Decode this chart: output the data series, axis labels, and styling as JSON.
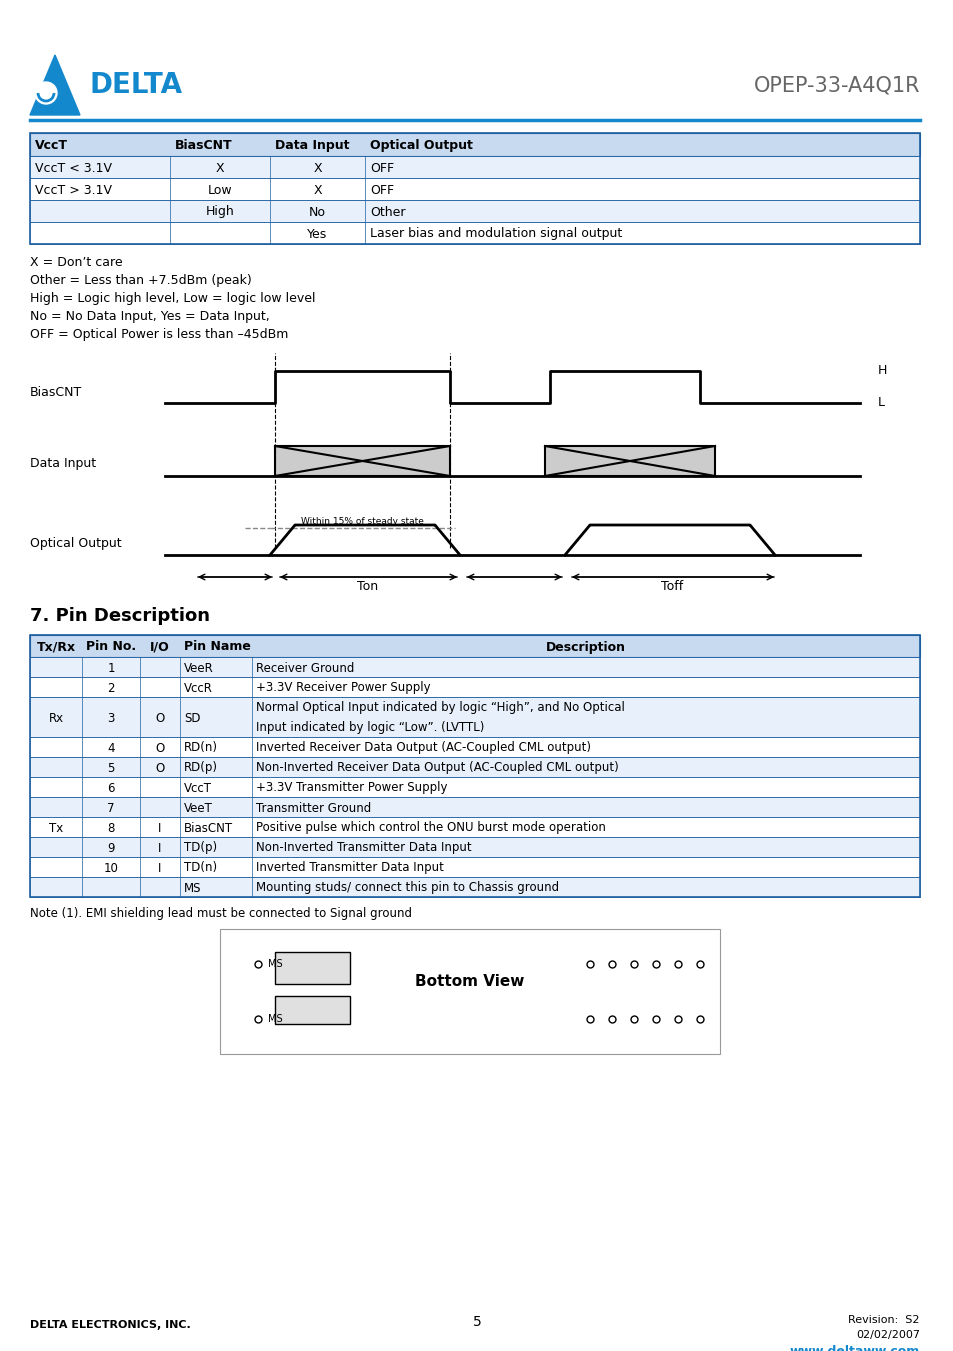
{
  "title": "OPEP-33-A4Q1R",
  "bg_color": "#ffffff",
  "blue_color": "#1488cc",
  "dark_blue": "#1e5fa0",
  "header_bg": "#c8daf0",
  "table1_headers": [
    "VccT",
    "BiasCNT",
    "Data Input",
    "Optical Output"
  ],
  "table1_rows": [
    [
      "VccT < 3.1V",
      "X",
      "X",
      "OFF"
    ],
    [
      "VccT > 3.1V",
      "Low",
      "X",
      "OFF"
    ],
    [
      "",
      "High",
      "No",
      "Other"
    ],
    [
      "",
      "",
      "Yes",
      "Laser bias and modulation signal output"
    ]
  ],
  "notes": [
    "X = Don’t care",
    "Other = Less than +7.5dBm (peak)",
    "High = Logic high level, Low = logic low level",
    "No = No Data Input, Yes = Data Input,",
    "OFF = Optical Power is less than –45dBm"
  ],
  "section7_title": "7. Pin Description",
  "table2_headers": [
    "Tx/Rx",
    "Pin No.",
    "I/O",
    "Pin Name",
    "Description"
  ],
  "table2_rows": [
    [
      "",
      "1",
      "",
      "VeeR",
      "Receiver Ground"
    ],
    [
      "",
      "2",
      "",
      "VccR",
      "+3.3V Receiver Power Supply"
    ],
    [
      "Rx",
      "3",
      "O",
      "SD",
      "Normal Optical Input indicated by logic “High”, and No Optical\nInput indicated by logic “Low”. (LVTTL)"
    ],
    [
      "",
      "4",
      "O",
      "RD(n)",
      "Inverted Receiver Data Output (AC-Coupled CML output)"
    ],
    [
      "",
      "5",
      "O",
      "RD(p)",
      "Non-Inverted Receiver Data Output (AC-Coupled CML output)"
    ],
    [
      "",
      "6",
      "",
      "VccT",
      "+3.3V Transmitter Power Supply"
    ],
    [
      "",
      "7",
      "",
      "VeeT",
      "Transmitter Ground"
    ],
    [
      "Tx",
      "8",
      "I",
      "BiasCNT",
      "Positive pulse which control the ONU burst mode operation"
    ],
    [
      "",
      "9",
      "I",
      "TD(p)",
      "Non-Inverted Transmitter Data Input"
    ],
    [
      "",
      "10",
      "I",
      "TD(n)",
      "Inverted Transmitter Data Input"
    ],
    [
      "",
      "",
      "",
      "MS",
      "Mounting studs/ connect this pin to Chassis ground"
    ]
  ],
  "note2": "Note (1). EMI shielding lead must be connected to Signal ground",
  "footer_left": "DELTA ELECTRONICS, INC.",
  "footer_page": "5",
  "footer_right1": "Revision:  S2",
  "footer_right2": "02/02/2007",
  "footer_url": "www.deltaww.com"
}
